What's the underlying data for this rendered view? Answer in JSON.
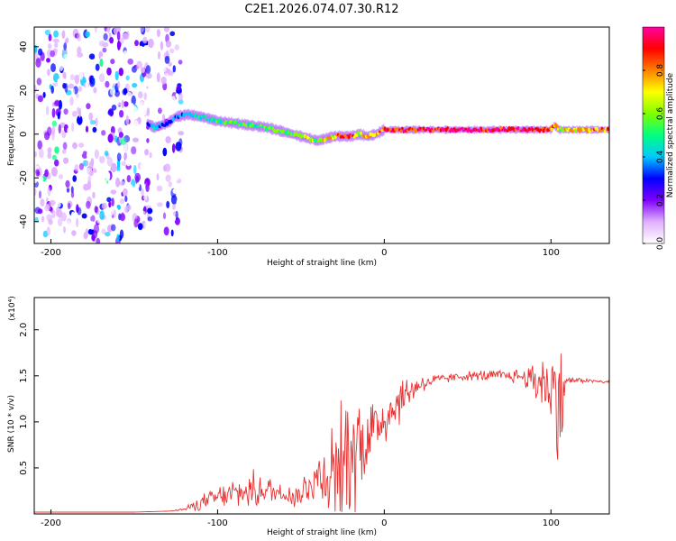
{
  "figure_title": "C2E1.2026.074.07.30.R12",
  "chart_data": [
    {
      "type": "heatmap",
      "title": "C2E1.2026.074.07.30.R12",
      "xlabel": "Height of straight line (km)",
      "ylabel": "Frequency (Hz)",
      "xlim": [
        -210,
        135
      ],
      "ylim": [
        -50,
        49
      ],
      "xticks": [
        -200,
        -100,
        0,
        100
      ],
      "yticks": [
        -40,
        -20,
        0,
        20,
        40
      ],
      "colorbar": {
        "label": "Normalized spectral amplitude",
        "range": [
          0.0,
          1.0
        ],
        "ticks": [
          0.0,
          0.2,
          0.4,
          0.6,
          0.8
        ],
        "colors": [
          "#ffffff",
          "#e0b0ff",
          "#8000ff",
          "#0000ff",
          "#00c8ff",
          "#00ff80",
          "#80ff00",
          "#ffff00",
          "#ff8000",
          "#ff0000",
          "#ff00a0"
        ]
      },
      "ridge": {
        "name": "dominant frequency track",
        "x": [
          -142,
          -138,
          -130,
          -125,
          -118,
          -110,
          -100,
          -90,
          -80,
          -70,
          -60,
          -50,
          -45,
          -40,
          -35,
          -30,
          -25,
          -20,
          -15,
          -10,
          -5,
          0,
          10,
          20,
          40,
          60,
          80,
          90,
          100,
          102,
          105,
          110,
          120,
          135
        ],
        "y": [
          5,
          3,
          5,
          8,
          9,
          8,
          6,
          5,
          4,
          3,
          1,
          -1,
          -2,
          -3,
          -2,
          -1,
          -1,
          -1,
          0,
          -1,
          0,
          2,
          2,
          2,
          2,
          2,
          2,
          2,
          2,
          4,
          2,
          2,
          2,
          2
        ],
        "amplitude": [
          0.35,
          0.4,
          0.3,
          0.35,
          0.4,
          0.45,
          0.5,
          0.55,
          0.5,
          0.55,
          0.55,
          0.6,
          0.65,
          0.6,
          0.7,
          0.75,
          0.85,
          0.85,
          0.6,
          0.8,
          0.7,
          0.9,
          0.9,
          0.95,
          0.95,
          0.95,
          0.95,
          0.9,
          0.85,
          0.8,
          0.6,
          0.7,
          0.75,
          0.8
        ]
      },
      "noise_regions": [
        {
          "name": "low-altitude noise",
          "x": [
            -210,
            -140
          ],
          "y": [
            -50,
            49
          ],
          "amplitude": 0.3
        },
        {
          "name": "noise band",
          "x": [
            -136,
            -122
          ],
          "y": [
            -50,
            49
          ],
          "amplitude": 0.2
        }
      ]
    },
    {
      "type": "line",
      "xlabel": "Height of straight line (km)",
      "ylabel": "SNR (10 * v/v)",
      "y_multiplier": "(x10⁴)",
      "xlim": [
        -210,
        135
      ],
      "ylim": [
        0,
        2.35
      ],
      "xticks": [
        -200,
        -100,
        0,
        100
      ],
      "yticks": [
        0.5,
        1.0,
        1.5,
        2.0
      ],
      "color": "#e83030",
      "series": [
        {
          "name": "SNR",
          "x": [
            -210,
            -180,
            -150,
            -130,
            -120,
            -110,
            -100,
            -90,
            -80,
            -70,
            -60,
            -50,
            -45,
            -40,
            -30,
            -20,
            -10,
            -5,
            0,
            5,
            10,
            20,
            30,
            40,
            50,
            60,
            70,
            80,
            85,
            90,
            95,
            100,
            103,
            105,
            106,
            108,
            110,
            120,
            135
          ],
          "y": [
            0.02,
            0.02,
            0.02,
            0.03,
            0.05,
            0.12,
            0.18,
            0.22,
            0.25,
            0.26,
            0.22,
            0.2,
            0.35,
            0.4,
            0.5,
            0.7,
            0.85,
            0.95,
            1.05,
            1.15,
            1.25,
            1.4,
            1.45,
            1.48,
            1.5,
            1.5,
            1.5,
            1.5,
            1.48,
            1.45,
            1.45,
            1.35,
            1.2,
            1.5,
            1.0,
            1.4,
            1.45,
            1.45,
            1.43
          ],
          "noise_amplitude": [
            0,
            0,
            0,
            0,
            0.02,
            0.1,
            0.15,
            0.2,
            0.25,
            0.2,
            0.15,
            0.2,
            0.3,
            0.4,
            0.7,
            0.9,
            0.6,
            0.5,
            0.4,
            0.4,
            0.3,
            0.15,
            0.08,
            0.06,
            0.06,
            0.08,
            0.08,
            0.1,
            0.15,
            0.3,
            0.4,
            0.6,
            0.9,
            0.8,
            1.0,
            0.3,
            0.05,
            0.03,
            0.02
          ]
        }
      ]
    }
  ]
}
